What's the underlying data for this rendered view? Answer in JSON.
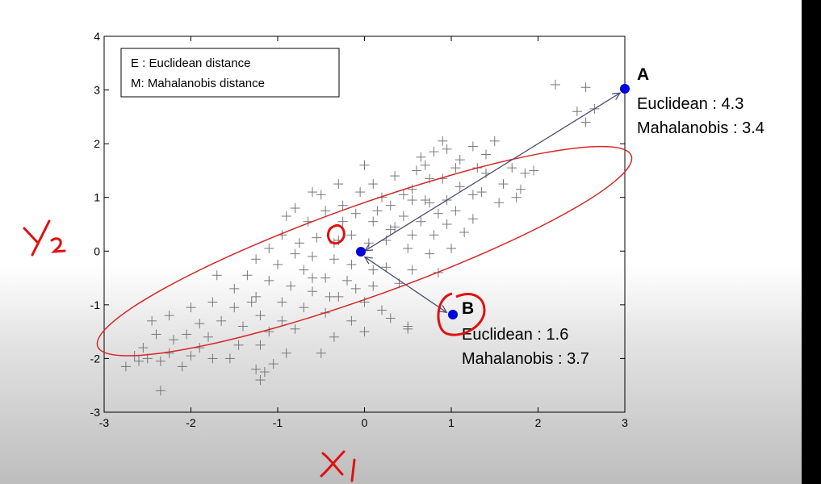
{
  "chart_data": {
    "type": "scatter",
    "xlim": [
      -3,
      3
    ],
    "ylim": [
      -3,
      4
    ],
    "xticks": [
      "-3",
      "-2",
      "-1",
      "0",
      "1",
      "2",
      "3"
    ],
    "yticks": [
      "-3",
      "-2",
      "-1",
      "0",
      "1",
      "2",
      "3",
      "4"
    ],
    "grid": false,
    "legend": {
      "placement": "top-left",
      "entries": [
        "E : Euclidean distance",
        "M: Mahalanobis distance"
      ]
    },
    "ellipse": {
      "center": [
        0.0,
        0.0
      ],
      "semi_axes": [
        3.55,
        0.72
      ],
      "angle_deg": 30,
      "color": "#d62728"
    },
    "center_point": {
      "x": -0.05,
      "y": -0.05,
      "color": "#0000dd"
    },
    "points_highlighted": [
      {
        "name": "A",
        "x": 3.0,
        "y": 3.0,
        "euclidean": "Euclidean : 4.3",
        "mahalanobis": "Mahalanobis : 3.4"
      },
      {
        "name": "B",
        "x": 1.0,
        "y": -1.2,
        "euclidean": "Euclidean : 1.6",
        "mahalanobis": "Mahalanobis : 3.7"
      }
    ],
    "annotations": {
      "handwritten_x": "X1",
      "handwritten_y": "Y2"
    },
    "scatter_points": [
      [
        2.2,
        3.1
      ],
      [
        2.55,
        3.05
      ],
      [
        2.45,
        2.6
      ],
      [
        2.65,
        2.65
      ],
      [
        2.55,
        2.4
      ],
      [
        1.5,
        2.05
      ],
      [
        1.4,
        1.8
      ],
      [
        1.7,
        1.55
      ],
      [
        1.85,
        1.45
      ],
      [
        1.95,
        1.5
      ],
      [
        1.6,
        1.25
      ],
      [
        1.75,
        1.0
      ],
      [
        1.8,
        1.15
      ],
      [
        0.9,
        2.05
      ],
      [
        0.95,
        1.9
      ],
      [
        0.8,
        1.85
      ],
      [
        1.1,
        1.7
      ],
      [
        1.25,
        1.95
      ],
      [
        0.65,
        1.75
      ],
      [
        0.7,
        1.6
      ],
      [
        1.05,
        1.55
      ],
      [
        1.3,
        1.55
      ],
      [
        1.4,
        1.45
      ],
      [
        1.1,
        1.2
      ],
      [
        1.25,
        1.05
      ],
      [
        1.35,
        1.1
      ],
      [
        1.55,
        0.9
      ],
      [
        0.2,
        1.0
      ],
      [
        0.45,
        1.05
      ],
      [
        0.55,
        1.15
      ],
      [
        0.35,
        1.4
      ],
      [
        0.6,
        1.5
      ],
      [
        0.75,
        1.35
      ],
      [
        0.9,
        1.35
      ],
      [
        0.55,
        0.95
      ],
      [
        0.75,
        0.9
      ],
      [
        0.95,
        0.95
      ],
      [
        1.05,
        0.75
      ],
      [
        0.85,
        0.7
      ],
      [
        0.3,
        0.85
      ],
      [
        0.1,
        1.25
      ],
      [
        0.0,
        1.6
      ],
      [
        -0.05,
        1.1
      ],
      [
        0.15,
        0.75
      ],
      [
        0.45,
        0.65
      ],
      [
        0.65,
        0.55
      ],
      [
        0.95,
        0.5
      ],
      [
        1.25,
        0.6
      ],
      [
        1.15,
        0.35
      ],
      [
        0.8,
        0.3
      ],
      [
        0.55,
        0.3
      ],
      [
        0.35,
        0.45
      ],
      [
        0.1,
        0.55
      ],
      [
        -0.1,
        0.7
      ],
      [
        -0.25,
        0.85
      ],
      [
        -0.45,
        0.75
      ],
      [
        -0.65,
        0.55
      ],
      [
        -0.5,
        1.05
      ],
      [
        -0.3,
        1.25
      ],
      [
        -0.15,
        0.3
      ],
      [
        0.05,
        0.15
      ],
      [
        0.25,
        0.2
      ],
      [
        0.5,
        0.05
      ],
      [
        0.75,
        -0.05
      ],
      [
        1.0,
        0.05
      ],
      [
        -0.35,
        0.15
      ],
      [
        -0.55,
        0.25
      ],
      [
        -0.75,
        0.15
      ],
      [
        -0.95,
        0.3
      ],
      [
        -1.1,
        0.05
      ],
      [
        -0.8,
        -0.05
      ],
      [
        -0.6,
        -0.1
      ],
      [
        -0.35,
        -0.15
      ],
      [
        -0.15,
        -0.25
      ],
      [
        0.25,
        -0.3
      ],
      [
        0.55,
        -0.35
      ],
      [
        0.85,
        -0.4
      ],
      [
        -1.25,
        -0.15
      ],
      [
        -1.0,
        -0.25
      ],
      [
        -0.7,
        -0.35
      ],
      [
        -0.45,
        -0.5
      ],
      [
        -0.2,
        -0.55
      ],
      [
        0.1,
        -0.65
      ],
      [
        0.4,
        -0.6
      ],
      [
        -1.35,
        -0.45
      ],
      [
        -1.1,
        -0.55
      ],
      [
        -0.85,
        -0.65
      ],
      [
        -0.6,
        -0.75
      ],
      [
        -0.3,
        -0.85
      ],
      [
        0.0,
        -0.95
      ],
      [
        -1.5,
        -0.7
      ],
      [
        -1.25,
        -0.85
      ],
      [
        -0.95,
        -0.95
      ],
      [
        -0.7,
        -1.05
      ],
      [
        -0.45,
        -1.15
      ],
      [
        -0.15,
        -1.3
      ],
      [
        0.2,
        -1.1
      ],
      [
        0.5,
        -1.45
      ],
      [
        -1.75,
        -0.95
      ],
      [
        -1.5,
        -1.05
      ],
      [
        -1.2,
        -1.2
      ],
      [
        -0.95,
        -1.3
      ],
      [
        -1.65,
        -1.3
      ],
      [
        -1.4,
        -1.4
      ],
      [
        -1.1,
        -1.5
      ],
      [
        -0.8,
        -1.45
      ],
      [
        -1.9,
        -1.35
      ],
      [
        -2.05,
        -1.55
      ],
      [
        -1.8,
        -1.6
      ],
      [
        -1.45,
        -1.75
      ],
      [
        -1.2,
        -1.75
      ],
      [
        -0.9,
        -1.9
      ],
      [
        -2.0,
        -1.05
      ],
      [
        -2.25,
        -1.2
      ],
      [
        -2.45,
        -1.3
      ],
      [
        -2.4,
        -1.55
      ],
      [
        -2.2,
        -1.65
      ],
      [
        -1.9,
        -1.8
      ],
      [
        -2.55,
        -1.8
      ],
      [
        -2.25,
        -1.9
      ],
      [
        -2.0,
        -1.95
      ],
      [
        -1.75,
        -2.0
      ],
      [
        -2.65,
        -1.95
      ],
      [
        -2.35,
        -2.05
      ],
      [
        -2.1,
        -2.15
      ],
      [
        -1.55,
        -2.0
      ],
      [
        -1.25,
        -2.2
      ],
      [
        -1.15,
        -2.25
      ],
      [
        -2.75,
        -2.15
      ],
      [
        -2.6,
        -2.05
      ],
      [
        -2.5,
        -2.0
      ],
      [
        -2.35,
        -2.6
      ],
      [
        -1.2,
        -2.4
      ],
      [
        -1.05,
        -2.1
      ],
      [
        -0.5,
        -1.9
      ],
      [
        -0.35,
        -1.6
      ],
      [
        0.0,
        -1.5
      ],
      [
        0.3,
        -1.25
      ],
      [
        0.5,
        -1.4
      ],
      [
        -0.8,
        0.8
      ],
      [
        -0.6,
        1.1
      ],
      [
        -0.3,
        0.2
      ],
      [
        -0.25,
        0.55
      ],
      [
        -0.9,
        0.65
      ],
      [
        -0.4,
        -0.85
      ],
      [
        -0.6,
        -0.5
      ],
      [
        -1.3,
        -0.95
      ],
      [
        -1.7,
        -0.45
      ],
      [
        0.3,
        0.4
      ],
      [
        0.7,
        0.95
      ],
      [
        0.1,
        -0.35
      ],
      [
        -0.1,
        -0.7
      ]
    ]
  }
}
